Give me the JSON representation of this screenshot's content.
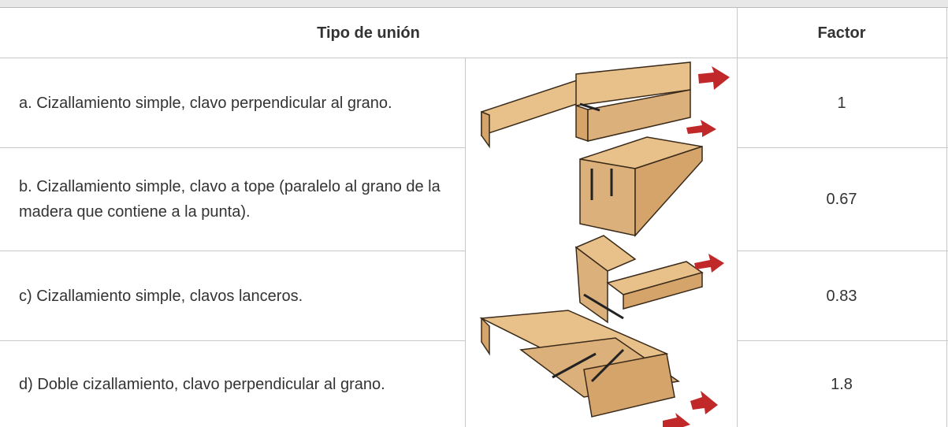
{
  "header": {
    "columns": [
      "Tipo de unión",
      "Factor"
    ]
  },
  "table": {
    "rows": [
      [
        "a. Cizallamiento simple, clavo perpendicular al grano.",
        "1"
      ],
      [
        "b. Cizallamiento simple, clavo a tope (paralelo al grano de la madera que contiene a la punta).",
        "0.67"
      ],
      [
        "c) Cizallamiento simple, clavos lanceros.",
        "0.83"
      ],
      [
        "d) Doble cizallamiento, clavo perpendicular al grano.",
        "1.8"
      ]
    ]
  }
}
